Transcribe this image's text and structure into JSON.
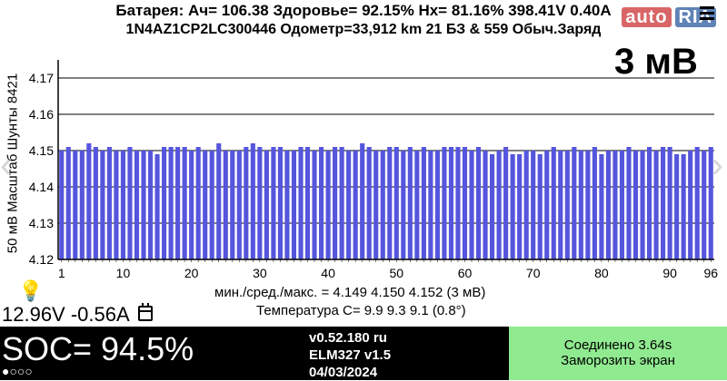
{
  "header": {
    "line1": "Батарея:  Ач= 106.38  Здоровье= 92.15%  Hx= 81.16%   398.41V  0.40A",
    "line2": "1N4AZ1CP2LC300446 Одометр=33,912 km  21 БЗ & 559 Обыч.Заряд",
    "delta_big": "3 мВ",
    "watermark_auto": "auto",
    "watermark_ria": "RIA"
  },
  "y_axis_label": "50 мВ Масштаб   Шунты 8421",
  "stats": {
    "minmax": "мин./сред./макс. = 4.149 4.150 4.152  (3 мВ)",
    "temperature": "Температура C= 9.9  9.3  9.1  (0.8°)"
  },
  "status": {
    "voltage_current": "12.96V -0.56A",
    "soc": "SOC= 94.5%",
    "dots": "●○○○",
    "version": "v0.52.180 ru",
    "adapter": "ELM327 v1.5",
    "date": "04/03/2024",
    "connected": "Соединено 3.64s",
    "freeze": "Заморозить экран"
  },
  "colors": {
    "bar": "#5555dd",
    "bar_edge": "#3a3ab5",
    "status_bg": "#000000",
    "connected_bg": "#90ea90"
  },
  "chart_data": {
    "type": "bar",
    "ylim": [
      4.12,
      4.175
    ],
    "y_ticks": [
      "4.17",
      "4.16",
      "4.15",
      "4.14",
      "4.13",
      "4.12"
    ],
    "x_ticks": [
      "1",
      "10",
      "20",
      "30",
      "40",
      "50",
      "60",
      "70",
      "80",
      "90",
      "96"
    ],
    "grid": true,
    "categories_count": 96,
    "values": [
      4.15,
      4.151,
      4.15,
      4.15,
      4.152,
      4.151,
      4.15,
      4.151,
      4.15,
      4.15,
      4.151,
      4.15,
      4.15,
      4.15,
      4.149,
      4.151,
      4.151,
      4.151,
      4.151,
      4.15,
      4.151,
      4.15,
      4.15,
      4.152,
      4.15,
      4.15,
      4.15,
      4.151,
      4.152,
      4.151,
      4.15,
      4.151,
      4.151,
      4.15,
      4.15,
      4.151,
      4.151,
      4.15,
      4.151,
      4.15,
      4.151,
      4.151,
      4.15,
      4.15,
      4.152,
      4.151,
      4.15,
      4.15,
      4.151,
      4.151,
      4.15,
      4.151,
      4.15,
      4.151,
      4.15,
      4.15,
      4.151,
      4.151,
      4.151,
      4.151,
      4.15,
      4.151,
      4.15,
      4.149,
      4.15,
      4.151,
      4.149,
      4.149,
      4.15,
      4.15,
      4.149,
      4.15,
      4.151,
      4.15,
      4.15,
      4.151,
      4.15,
      4.15,
      4.151,
      4.149,
      4.15,
      4.15,
      4.15,
      4.151,
      4.15,
      4.15,
      4.151,
      4.15,
      4.151,
      4.151,
      4.149,
      4.149,
      4.15,
      4.151,
      4.15,
      4.151
    ]
  }
}
